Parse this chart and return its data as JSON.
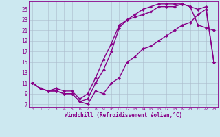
{
  "xlabel": "Windchill (Refroidissement éolien,°C)",
  "bg_color": "#cce8f0",
  "line_color": "#880088",
  "marker": "D",
  "markersize": 2.5,
  "linewidth": 1.0,
  "xlim": [
    -0.5,
    23.5
  ],
  "ylim": [
    6.5,
    26.5
  ],
  "xticks": [
    0,
    1,
    2,
    3,
    4,
    5,
    6,
    7,
    8,
    9,
    10,
    11,
    12,
    13,
    14,
    15,
    16,
    17,
    18,
    19,
    20,
    21,
    22,
    23
  ],
  "yticks": [
    7,
    9,
    11,
    13,
    15,
    17,
    19,
    21,
    23,
    25
  ],
  "line1_x": [
    0,
    1,
    2,
    3,
    4,
    5,
    6,
    7,
    8,
    9,
    10,
    11,
    12,
    13,
    14,
    15,
    16,
    17,
    18,
    19,
    20,
    21,
    22,
    23
  ],
  "line1_y": [
    11,
    10,
    9.5,
    9.5,
    9,
    9,
    7.5,
    7,
    9.5,
    9,
    11,
    12,
    15,
    16,
    17.5,
    18,
    19,
    20,
    21,
    22,
    22.5,
    24,
    25,
    15
  ],
  "line2_x": [
    0,
    1,
    2,
    3,
    4,
    5,
    6,
    7,
    8,
    9,
    10,
    11,
    12,
    13,
    14,
    15,
    16,
    17,
    18,
    19,
    20,
    21,
    22,
    23
  ],
  "line2_y": [
    11,
    10,
    9.5,
    9.5,
    9,
    9,
    7.5,
    8,
    11,
    13.5,
    17,
    21.5,
    23,
    23.5,
    24,
    24.5,
    25.5,
    25.5,
    25.5,
    26,
    25.5,
    22,
    21.5,
    21
  ],
  "line3_x": [
    0,
    1,
    2,
    3,
    4,
    5,
    6,
    7,
    8,
    9,
    10,
    11,
    12,
    13,
    14,
    15,
    16,
    17,
    18,
    19,
    20,
    21,
    22,
    23
  ],
  "line3_y": [
    11,
    10,
    9.5,
    10,
    9.5,
    9.5,
    8,
    9,
    12,
    15.5,
    18.5,
    22,
    23,
    24,
    25,
    25.5,
    26,
    26,
    26,
    26,
    25.5,
    25,
    25.5,
    15
  ]
}
